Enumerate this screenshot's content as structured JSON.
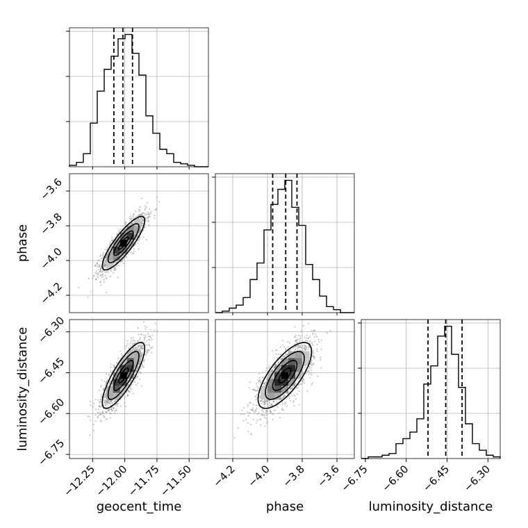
{
  "chart_data": {
    "type": "corner",
    "parameters": [
      "geocent_time",
      "phase",
      "luminosity_distance"
    ],
    "grid": true,
    "colors": {
      "line": "#000000",
      "scatter": "#9a9a9a",
      "grid": "#b0b0b0"
    },
    "ranges": {
      "geocent_time": [
        -12.43,
        -11.35
      ],
      "phase": [
        -4.3,
        -3.5
      ],
      "luminosity_distance": [
        -6.765,
        -6.255
      ]
    },
    "ticks": {
      "geocent_time": [
        -12.25,
        -12.0,
        -11.75,
        -11.5
      ],
      "phase": [
        -4.2,
        -4.0,
        -3.8,
        -3.6
      ],
      "luminosity_distance": [
        -6.75,
        -6.6,
        -6.45,
        -6.3
      ]
    },
    "tick_labels": {
      "geocent_time": [
        "−12.25",
        "−12.00",
        "−11.75",
        "−11.50"
      ],
      "phase": [
        "−4.2",
        "−4.0",
        "−3.8",
        "−3.6"
      ],
      "luminosity_distance": [
        "−6.75",
        "−6.60",
        "−6.45",
        "−6.30"
      ]
    },
    "quantiles": {
      "geocent_time": [
        -12.085,
        -12.015,
        -11.94
      ],
      "phase": [
        -3.97,
        -3.895,
        -3.83
      ],
      "luminosity_distance": [
        -6.52,
        -6.455,
        -6.395
      ]
    },
    "posterior": {
      "geocent_time": {
        "mean": -12.01,
        "std": 0.075
      },
      "phase": {
        "mean": -3.9,
        "std": 0.07
      },
      "luminosity_distance": {
        "mean": -6.46,
        "std": 0.055
      }
    },
    "correlations": {
      "phase|geocent_time": 0.85,
      "luminosity_distance|geocent_time": 0.82,
      "luminosity_distance|phase": 0.72
    },
    "histograms": {
      "geocent_time": {
        "bin_edges": [
          -12.43,
          -12.376,
          -12.322,
          -12.268,
          -12.214,
          -12.16,
          -12.106,
          -12.052,
          -11.998,
          -11.944,
          -11.89,
          -11.836,
          -11.782,
          -11.728,
          -11.674,
          -11.62,
          -11.566,
          -11.512,
          -11.458,
          -11.404,
          -11.35
        ],
        "counts": [
          1,
          3,
          9,
          30,
          52,
          67,
          76,
          88,
          91,
          78,
          63,
          35,
          23,
          12,
          9,
          3,
          2,
          1,
          0,
          0
        ]
      },
      "phase": {
        "bin_edges": [
          -4.3,
          -4.26,
          -4.22,
          -4.18,
          -4.14,
          -4.1,
          -4.06,
          -4.02,
          -3.98,
          -3.94,
          -3.9,
          -3.86,
          -3.82,
          -3.78,
          -3.74,
          -3.7,
          -3.66,
          -3.62,
          -3.58,
          -3.54,
          -3.5
        ],
        "counts": [
          0,
          1,
          3,
          5,
          10,
          22,
          33,
          55,
          72,
          82,
          88,
          70,
          58,
          32,
          22,
          11,
          4,
          2,
          0,
          0
        ]
      },
      "luminosity_distance": {
        "bin_edges": [
          -6.765,
          -6.7395,
          -6.714,
          -6.6885,
          -6.663,
          -6.6375,
          -6.612,
          -6.5865,
          -6.561,
          -6.5355,
          -6.51,
          -6.4845,
          -6.459,
          -6.4335,
          -6.408,
          -6.3825,
          -6.357,
          -6.3315,
          -6.306,
          -6.2805,
          -6.255
        ],
        "counts": [
          0,
          1,
          1,
          2,
          3,
          9,
          12,
          16,
          24,
          45,
          56,
          74,
          80,
          63,
          43,
          21,
          9,
          5,
          2,
          1
        ]
      }
    }
  }
}
